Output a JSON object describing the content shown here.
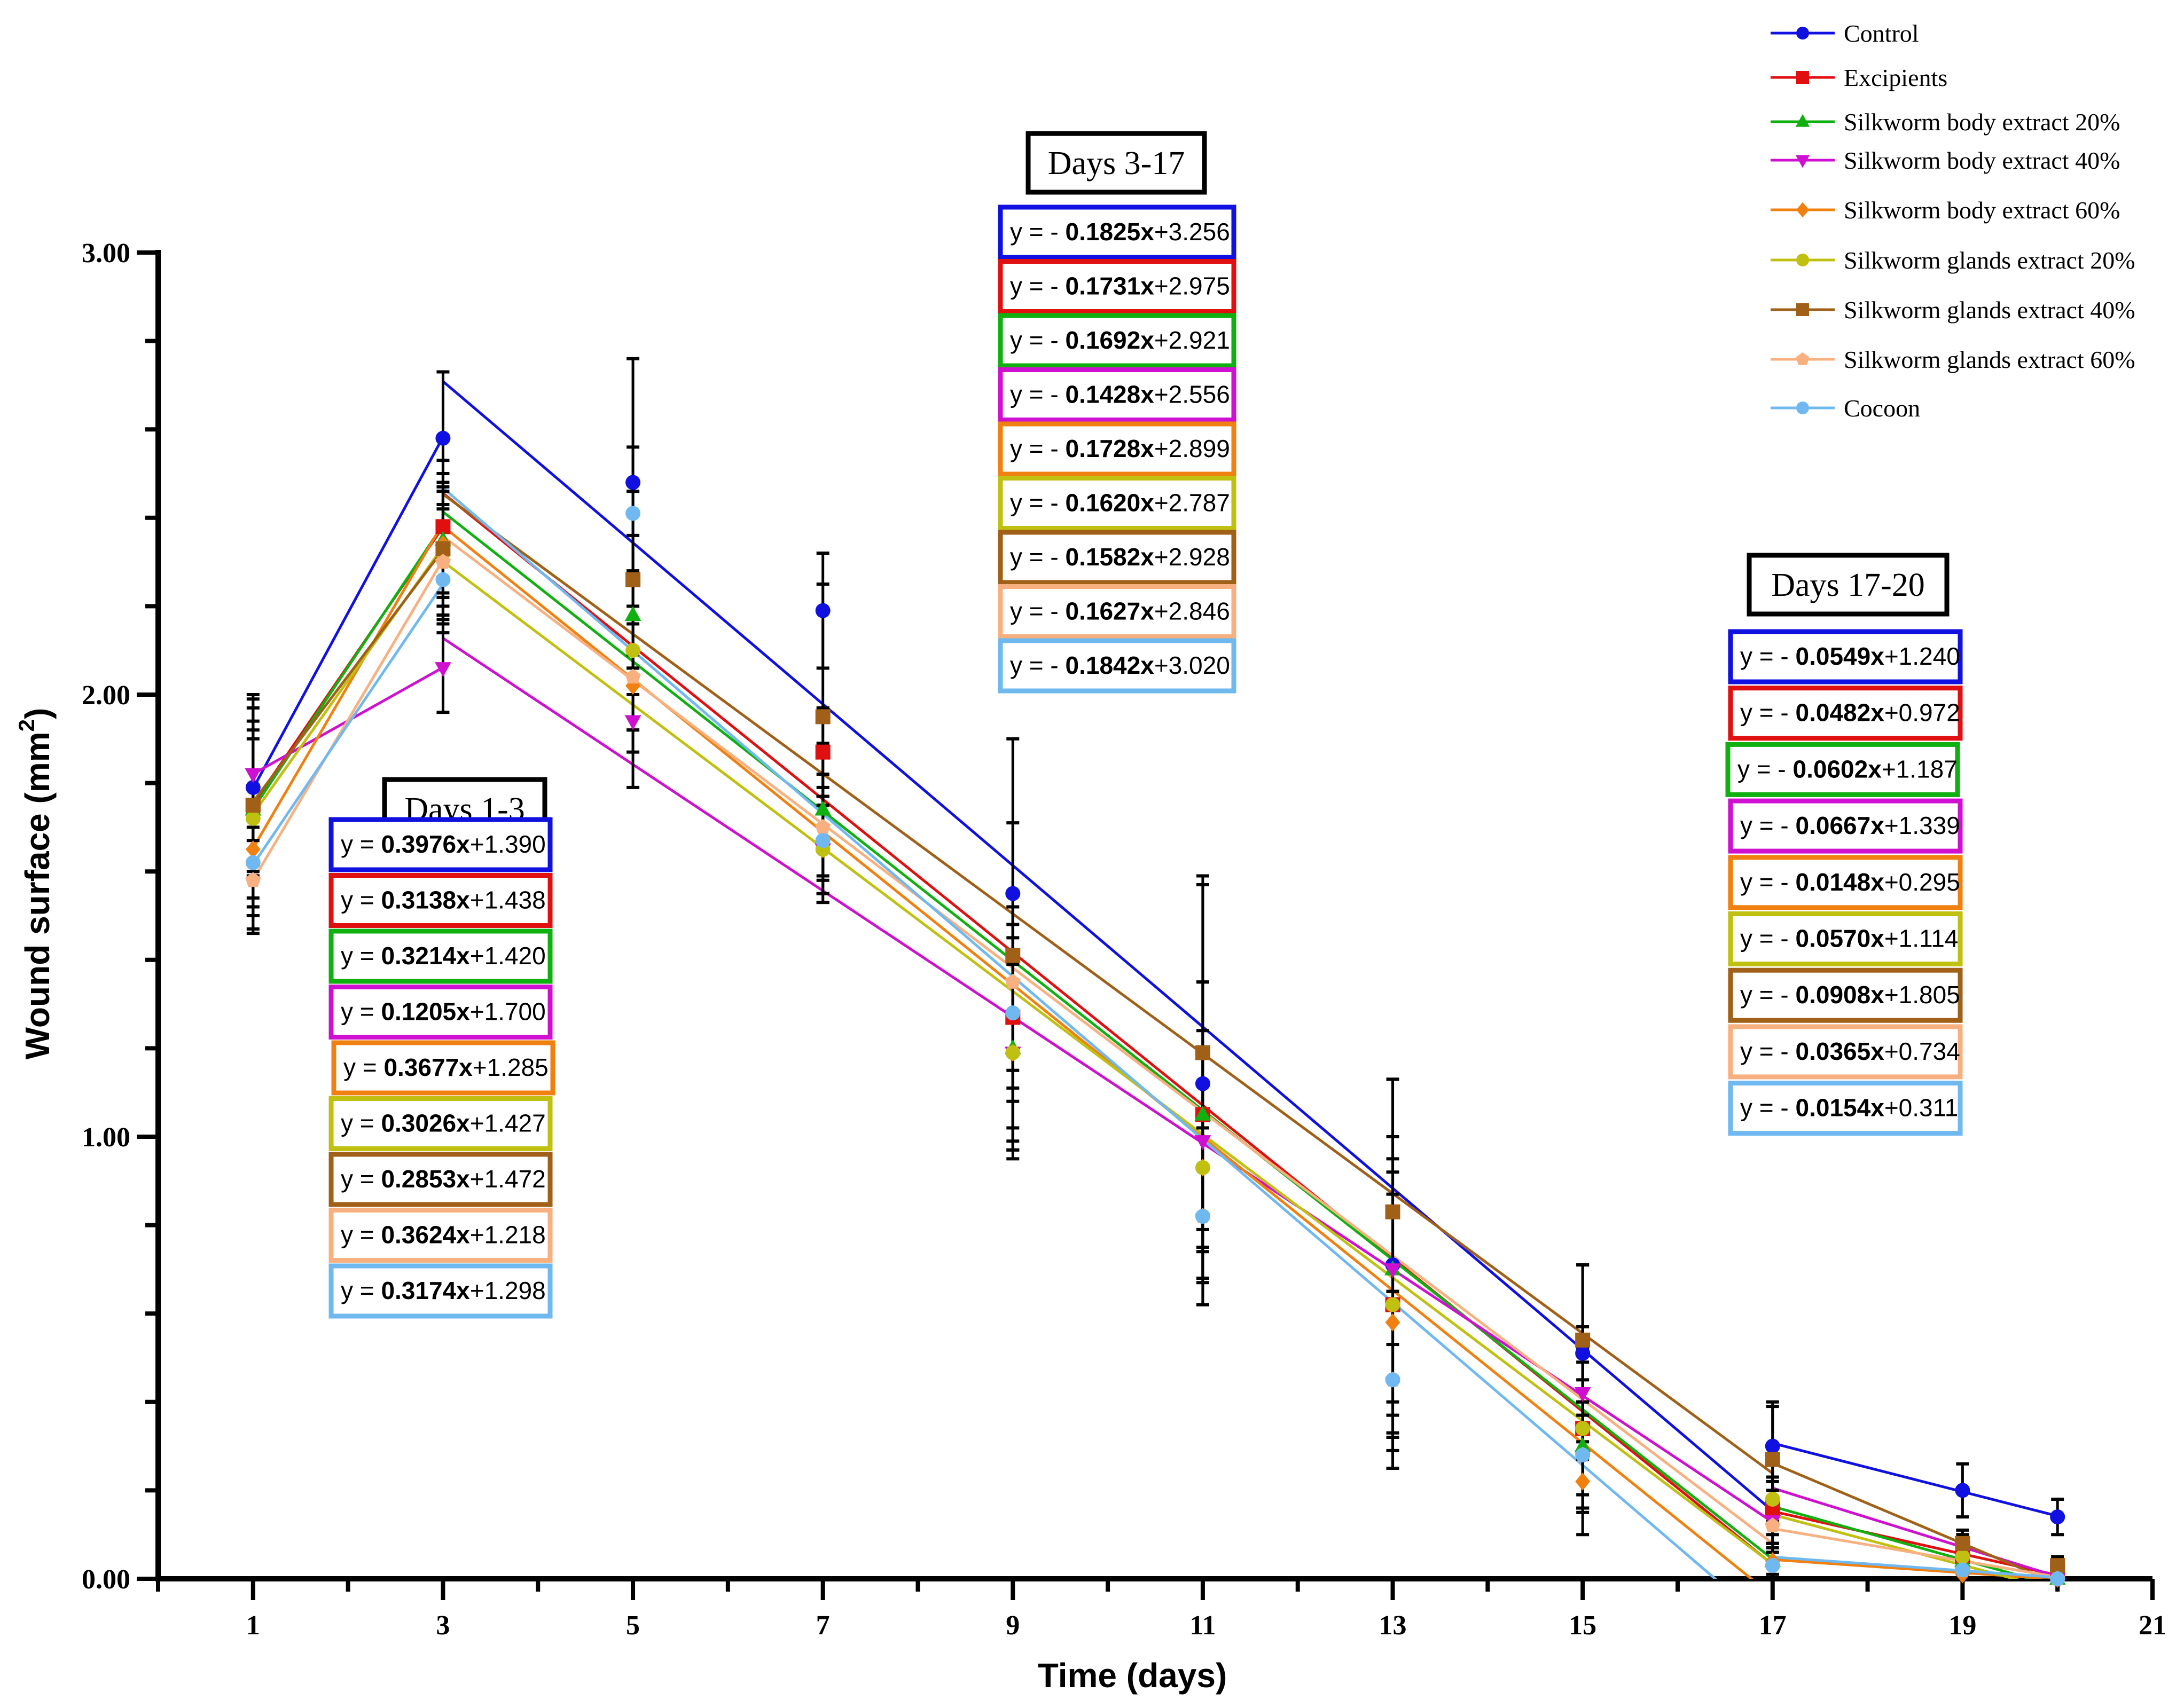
{
  "chart_data": {
    "type": "line",
    "xlabel": "Time (days)",
    "ylabel": "Wound surface (mm",
    "ylabel_sup": "2",
    "ylabel_close": ")",
    "xlim": [
      0,
      21
    ],
    "ylim": [
      0,
      3.0
    ],
    "xticks": [
      "1",
      "3",
      "5",
      "7",
      "9",
      "11",
      "13",
      "15",
      "17",
      "19",
      "21"
    ],
    "yticks": [
      "0.00",
      "1.00",
      "2.00",
      "3.00"
    ],
    "x": [
      1,
      3,
      5,
      7,
      9,
      11,
      13,
      15,
      17,
      19,
      20
    ],
    "series": [
      {
        "name": "Control",
        "color": "#1010e0",
        "marker": "circle",
        "values": [
          1.79,
          2.58,
          2.48,
          2.19,
          1.55,
          1.12,
          0.71,
          0.51,
          0.3,
          0.2,
          0.14
        ],
        "errors": [
          0.2,
          0.15,
          0.28,
          0.13,
          0.35,
          0.45,
          0.42,
          0.2,
          0.1,
          0.06,
          0.04
        ]
      },
      {
        "name": "Excipients",
        "color": "#e01010",
        "marker": "square",
        "values": [
          1.75,
          2.38,
          2.26,
          1.87,
          1.27,
          1.05,
          0.62,
          0.34,
          0.16,
          0.05,
          0.02
        ],
        "errors": [
          0.15,
          0.15,
          0.2,
          0.1,
          0.25,
          0.3,
          0.3,
          0.18,
          0.06,
          0.03,
          0.02
        ]
      },
      {
        "name": "Silkworm body extract 20%",
        "color": "#10b010",
        "marker": "triangle-up",
        "values": [
          1.74,
          2.35,
          2.18,
          1.74,
          1.2,
          1.05,
          0.7,
          0.3,
          0.04,
          0.04,
          0.0
        ],
        "errors": [
          0.2,
          0.15,
          0.18,
          0.15,
          0.25,
          0.3,
          0.3,
          0.15,
          0.04,
          0.02,
          0.01
        ]
      },
      {
        "name": "Silkworm body extract 40%",
        "color": "#d010d0",
        "marker": "triangle-down",
        "values": [
          1.82,
          2.06,
          1.94,
          1.65,
          1.19,
          0.99,
          0.7,
          0.42,
          0.13,
          0.07,
          0.0
        ],
        "errors": [
          0.15,
          0.1,
          0.15,
          0.1,
          0.2,
          0.25,
          0.25,
          0.15,
          0.05,
          0.03,
          0.01
        ]
      },
      {
        "name": "Silkworm body extract 60%",
        "color": "#f08010",
        "marker": "diamond",
        "values": [
          1.65,
          2.34,
          2.02,
          1.65,
          1.19,
          0.93,
          0.58,
          0.22,
          0.04,
          0.01,
          0.0
        ],
        "errors": [
          0.18,
          0.12,
          0.15,
          0.12,
          0.22,
          0.25,
          0.25,
          0.12,
          0.03,
          0.01,
          0.0
        ]
      },
      {
        "name": "Silkworm glands extract 20%",
        "color": "#c0c010",
        "marker": "circle",
        "values": [
          1.72,
          2.32,
          2.1,
          1.65,
          1.19,
          0.93,
          0.62,
          0.34,
          0.18,
          0.05,
          0.0
        ],
        "errors": [
          0.2,
          0.15,
          0.18,
          0.12,
          0.22,
          0.25,
          0.25,
          0.15,
          0.05,
          0.02,
          0.01
        ]
      },
      {
        "name": "Silkworm glands extract 40%",
        "color": "#a06018",
        "marker": "square",
        "values": [
          1.75,
          2.33,
          2.26,
          1.95,
          1.41,
          1.19,
          0.83,
          0.54,
          0.27,
          0.08,
          0.03
        ],
        "errors": [
          0.25,
          0.15,
          0.2,
          0.3,
          0.3,
          0.4,
          0.3,
          0.17,
          0.12,
          0.03,
          0.02
        ]
      },
      {
        "name": "Silkworm glands extract 60%",
        "color": "#f8b080",
        "marker": "pentagon",
        "values": [
          1.58,
          2.3,
          2.04,
          1.7,
          1.35,
          0.82,
          0.45,
          0.28,
          0.12,
          0.02,
          0.0
        ],
        "errors": [
          0.12,
          0.12,
          0.12,
          0.12,
          0.2,
          0.2,
          0.2,
          0.12,
          0.04,
          0.01,
          0.0
        ]
      },
      {
        "name": "Cocoon",
        "color": "#70b8f0",
        "marker": "circle",
        "values": [
          1.62,
          2.26,
          2.41,
          1.67,
          1.28,
          0.82,
          0.45,
          0.28,
          0.03,
          0.02,
          0.0
        ],
        "errors": [
          0.12,
          0.12,
          0.15,
          0.12,
          0.2,
          0.2,
          0.2,
          0.12,
          0.03,
          0.01,
          0.0
        ]
      }
    ],
    "regressions": [
      {
        "title": "Days 1-3",
        "x_range": [
          1,
          3
        ],
        "equations": [
          {
            "prefix": "y = ",
            "slope": "0.3976x",
            "intercept": "+1.390",
            "m": 0.3976,
            "b": 1.39
          },
          {
            "prefix": "y = ",
            "slope": "0.3138x",
            "intercept": "+1.438",
            "m": 0.3138,
            "b": 1.438
          },
          {
            "prefix": "y = ",
            "slope": "0.3214x",
            "intercept": "+1.420",
            "m": 0.3214,
            "b": 1.42
          },
          {
            "prefix": "y = ",
            "slope": "0.1205x",
            "intercept": "+1.700",
            "m": 0.1205,
            "b": 1.7
          },
          {
            "prefix": "y = ",
            "slope": "0.3677x",
            "intercept": "+1.285",
            "m": 0.3677,
            "b": 1.285
          },
          {
            "prefix": "y = ",
            "slope": "0.3026x",
            "intercept": "+1.427",
            "m": 0.3026,
            "b": 1.427
          },
          {
            "prefix": "y = ",
            "slope": "0.2853x",
            "intercept": "+1.472",
            "m": 0.2853,
            "b": 1.472
          },
          {
            "prefix": "y = ",
            "slope": "0.3624x",
            "intercept": "+1.218",
            "m": 0.3624,
            "b": 1.218
          },
          {
            "prefix": "y = ",
            "slope": "0.3174x",
            "intercept": "+1.298",
            "m": 0.3174,
            "b": 1.298
          }
        ]
      },
      {
        "title": "Days 3-17",
        "x_range": [
          3,
          17
        ],
        "equations": [
          {
            "prefix": "y = - ",
            "slope": "0.1825x",
            "intercept": "+3.256",
            "m": -0.1825,
            "b": 3.256
          },
          {
            "prefix": "y = - ",
            "slope": "0.1731x",
            "intercept": "+2.975",
            "m": -0.1731,
            "b": 2.975
          },
          {
            "prefix": "y = - ",
            "slope": "0.1692x",
            "intercept": "+2.921",
            "m": -0.1692,
            "b": 2.921
          },
          {
            "prefix": "y = - ",
            "slope": "0.1428x",
            "intercept": "+2.556",
            "m": -0.1428,
            "b": 2.556
          },
          {
            "prefix": "y = - ",
            "slope": "0.1728x",
            "intercept": "+2.899",
            "m": -0.1728,
            "b": 2.899
          },
          {
            "prefix": "y = - ",
            "slope": "0.1620x",
            "intercept": "+2.787",
            "m": -0.162,
            "b": 2.787
          },
          {
            "prefix": "y = - ",
            "slope": "0.1582x",
            "intercept": "+2.928",
            "m": -0.1582,
            "b": 2.928
          },
          {
            "prefix": "y = - ",
            "slope": "0.1627x",
            "intercept": "+2.846",
            "m": -0.1627,
            "b": 2.846
          },
          {
            "prefix": "y = - ",
            "slope": "0.1842x",
            "intercept": "+3.020",
            "m": -0.1842,
            "b": 3.02
          }
        ]
      },
      {
        "title": "Days 17-20",
        "x_range": [
          17,
          20
        ],
        "equations": [
          {
            "prefix": "y = - ",
            "slope": "0.0549x",
            "intercept": "+1.240",
            "m": -0.0549,
            "b": 1.24
          },
          {
            "prefix": "y = - ",
            "slope": "0.0482x",
            "intercept": "+0.972",
            "m": -0.0482,
            "b": 0.972
          },
          {
            "prefix": "y = - ",
            "slope": "0.0602x",
            "intercept": "+1.187",
            "m": -0.0602,
            "b": 1.187
          },
          {
            "prefix": "y = - ",
            "slope": "0.0667x",
            "intercept": "+1.339",
            "m": -0.0667,
            "b": 1.339
          },
          {
            "prefix": "y = - ",
            "slope": "0.0148x",
            "intercept": "+0.295",
            "m": -0.0148,
            "b": 0.295
          },
          {
            "prefix": "y = - ",
            "slope": "0.0570x",
            "intercept": "+1.114",
            "m": -0.057,
            "b": 1.114
          },
          {
            "prefix": "y = - ",
            "slope": "0.0908x",
            "intercept": "+1.805",
            "m": -0.0908,
            "b": 1.805
          },
          {
            "prefix": "y = - ",
            "slope": "0.0365x",
            "intercept": "+0.734",
            "m": -0.0365,
            "b": 0.734
          },
          {
            "prefix": "y = - ",
            "slope": "0.0154x",
            "intercept": "+0.311",
            "m": -0.0154,
            "b": 0.311
          }
        ]
      }
    ],
    "legend": "top-right",
    "grid": false
  }
}
